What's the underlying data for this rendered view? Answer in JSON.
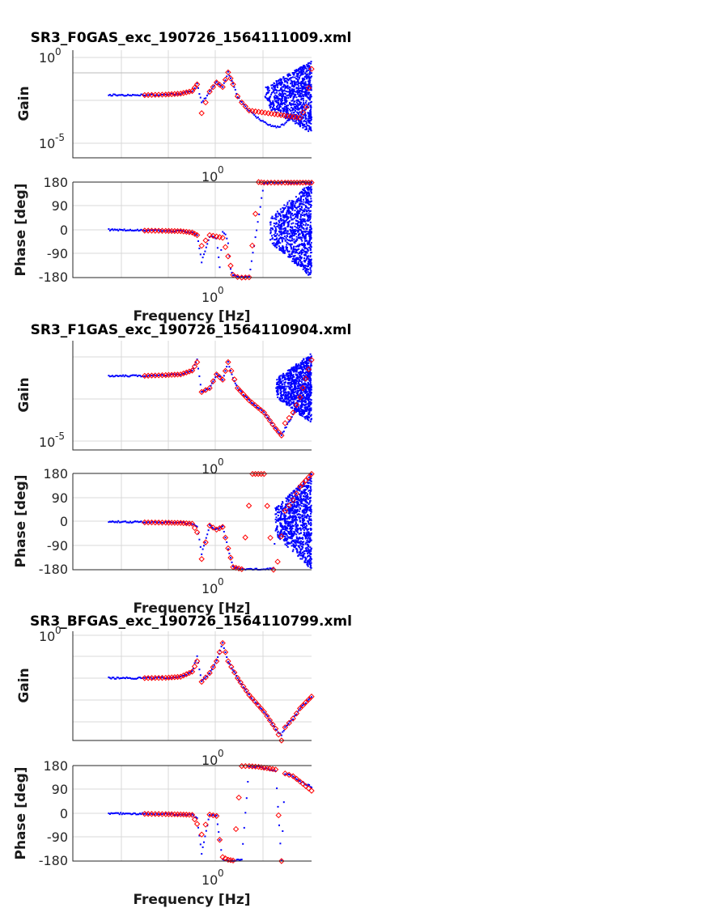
{
  "figure": {
    "blocks": [
      {
        "title": "SR3_F0GAS_exc_190726_1564111009.xml",
        "gain_ylabel": "Gain",
        "phase_ylabel": "Phase [deg]",
        "xlabel": "Frequency [Hz]"
      },
      {
        "title": "SR3_F1GAS_exc_190726_1564110904.xml",
        "gain_ylabel": "Gain",
        "phase_ylabel": "Phase [deg]",
        "xlabel": "Frequency [Hz]"
      },
      {
        "title": "SR3_BFGAS_exc_190726_1564110799.xml",
        "gain_ylabel": "Gain",
        "phase_ylabel": "Phase [deg]",
        "xlabel": "Frequency [Hz]"
      }
    ],
    "phase_ticks": [
      "180",
      "90",
      "0",
      "-90",
      "-180"
    ]
  },
  "chart_data": [
    {
      "type": "scatter",
      "subplot": "gain",
      "title": "SR3_F0GAS_exc_190726_1564111009.xml",
      "ylabel": "Gain",
      "xscale": "log",
      "yscale": "log",
      "xlim": [
        0.05,
        5
      ],
      "ylim": [
        5e-07,
        5
      ],
      "yticks": [
        {
          "base": "10",
          "exp": "0",
          "value": 1
        },
        {
          "base": "10",
          "exp": "-5",
          "value": 1e-05
        }
      ],
      "xticks": [
        {
          "base": "10",
          "exp": "0",
          "value": 1
        }
      ],
      "grid": true,
      "series": [
        {
          "color": "#0000ff",
          "marker": "dot",
          "x": [
            0.1,
            0.2,
            0.3,
            0.4,
            0.5,
            0.55,
            0.6,
            0.65,
            0.7,
            0.8,
            0.9,
            1.0,
            1.1,
            1.2,
            1.3,
            1.5,
            1.7,
            2.0,
            2.3,
            2.6,
            3.0,
            3.5,
            4.0,
            4.5,
            5.0
          ],
          "y": [
            0.006,
            0.006,
            0.0065,
            0.0075,
            0.011,
            0.03,
            0.002,
            0.004,
            0.01,
            0.04,
            0.02,
            0.18,
            0.03,
            0.005,
            0.002,
            0.0006,
            0.00025,
            0.0001,
            6e-05,
            5e-05,
            8e-05,
            0.0003,
            0.002,
            0.01,
            0.1
          ],
          "scatter_band": [
            [
              2.0,
              5.0
            ],
            [
              2e-05,
              1.0
            ]
          ]
        },
        {
          "color": "#ff0000",
          "marker": "diamond",
          "x": [
            0.2,
            0.3,
            0.4,
            0.5,
            0.55,
            0.6,
            0.7,
            0.8,
            0.9,
            1.0,
            1.1,
            1.2,
            1.3,
            1.5,
            4.0,
            4.5,
            5.0
          ],
          "y": [
            0.006,
            0.0065,
            0.0075,
            0.011,
            0.03,
            0.0004,
            0.01,
            0.04,
            0.02,
            0.18,
            0.03,
            0.005,
            0.002,
            0.0006,
            0.0002,
            0.001,
            0.3
          ]
        }
      ]
    },
    {
      "type": "scatter",
      "subplot": "phase",
      "ylabel": "Phase [deg]",
      "xlabel": "Frequency [Hz]",
      "xscale": "log",
      "xlim": [
        0.05,
        5
      ],
      "ylim": [
        -180,
        180
      ],
      "yticks": [
        180,
        90,
        0,
        -90,
        -180
      ],
      "xticks": [
        {
          "base": "10",
          "exp": "0",
          "value": 1
        }
      ],
      "grid": true,
      "series": [
        {
          "color": "#0000ff",
          "marker": "dot",
          "x": [
            0.1,
            0.2,
            0.3,
            0.4,
            0.5,
            0.55,
            0.6,
            0.7,
            0.8,
            0.85,
            0.9,
            0.95,
            1.0,
            1.05,
            1.1,
            1.2,
            1.3,
            1.5,
            2.0,
            2.5,
            3.0,
            4.0,
            5.0
          ],
          "y": [
            0,
            -2,
            -3,
            -5,
            -10,
            -20,
            -120,
            -25,
            -30,
            -140,
            -10,
            -20,
            -50,
            -150,
            -170,
            -178,
            -180,
            -178,
            178,
            178,
            178,
            178,
            178
          ],
          "scatter_band": [
            [
              2.2,
              5.0
            ],
            [
              -180,
              180
            ]
          ]
        },
        {
          "color": "#ff0000",
          "marker": "diamond",
          "x": [
            0.2,
            0.3,
            0.4,
            0.5,
            0.55,
            0.6,
            0.7,
            0.8,
            0.9,
            1.0,
            1.1,
            1.2,
            1.3,
            1.5,
            1.8,
            2.0,
            3.0,
            4.0,
            5.0
          ],
          "y": [
            -3,
            -4,
            -5,
            -10,
            -20,
            -60,
            -20,
            -25,
            -30,
            -100,
            -170,
            -178,
            -180,
            -179,
            180,
            178,
            178,
            178,
            178
          ]
        }
      ]
    },
    {
      "type": "scatter",
      "subplot": "gain",
      "title": "SR3_F1GAS_exc_190726_1564110904.xml",
      "ylabel": "Gain",
      "xscale": "log",
      "yscale": "log",
      "xlim": [
        0.05,
        5
      ],
      "ylim": [
        3e-06,
        5
      ],
      "yticks": [
        {
          "base": "10",
          "exp": "-5",
          "value": 1e-05
        }
      ],
      "xticks": [
        {
          "base": "10",
          "exp": "0",
          "value": 1
        }
      ],
      "grid": true,
      "series": [
        {
          "color": "#0000ff",
          "marker": "dot",
          "x": [
            0.1,
            0.2,
            0.3,
            0.4,
            0.5,
            0.55,
            0.6,
            0.7,
            0.8,
            0.9,
            1.0,
            1.1,
            1.2,
            1.5,
            2.0,
            2.5,
            2.8,
            3.0,
            3.5,
            4.0,
            5.0
          ],
          "y": [
            0.05,
            0.05,
            0.055,
            0.06,
            0.1,
            0.4,
            0.006,
            0.01,
            0.06,
            0.03,
            0.3,
            0.04,
            0.01,
            0.002,
            0.0004,
            5e-05,
            2e-05,
            5e-05,
            0.0003,
            0.003,
            0.2
          ],
          "scatter_band": [
            [
              2.5,
              5.0
            ],
            [
              0.0001,
              1.0
            ]
          ]
        },
        {
          "color": "#ff0000",
          "marker": "diamond",
          "x": [
            0.2,
            0.3,
            0.4,
            0.5,
            0.55,
            0.6,
            0.7,
            0.8,
            0.9,
            1.0,
            1.2,
            1.5,
            2.0,
            2.5,
            2.8,
            3.0,
            3.5,
            4.0,
            5.0
          ],
          "y": [
            0.05,
            0.055,
            0.06,
            0.1,
            0.3,
            0.006,
            0.01,
            0.06,
            0.03,
            0.3,
            0.01,
            0.002,
            0.0004,
            5e-05,
            2e-05,
            0.0001,
            0.0004,
            0.003,
            0.4
          ]
        }
      ]
    },
    {
      "type": "scatter",
      "subplot": "phase",
      "ylabel": "Phase [deg]",
      "xlabel": "Frequency [Hz]",
      "xscale": "log",
      "xlim": [
        0.05,
        5
      ],
      "ylim": [
        -180,
        180
      ],
      "yticks": [
        180,
        90,
        0,
        -90,
        -180
      ],
      "xticks": [
        {
          "base": "10",
          "exp": "0",
          "value": 1
        }
      ],
      "grid": true,
      "series": [
        {
          "color": "#0000ff",
          "marker": "dot",
          "x": [
            0.1,
            0.2,
            0.3,
            0.4,
            0.5,
            0.55,
            0.6,
            0.7,
            0.8,
            0.9,
            1.0,
            1.1,
            1.3,
            1.5,
            2.0,
            2.4,
            2.5,
            3.0,
            3.5,
            4.0,
            5.0
          ],
          "y": [
            0,
            -2,
            -3,
            -5,
            -8,
            -20,
            -120,
            -15,
            -30,
            -20,
            -100,
            -170,
            -178,
            -178,
            -180,
            -175,
            5,
            10,
            20,
            60,
            178
          ],
          "scatter_band": [
            [
              2.4,
              5.0
            ],
            [
              -180,
              180
            ]
          ]
        },
        {
          "color": "#ff0000",
          "marker": "diamond",
          "x": [
            0.2,
            0.3,
            0.4,
            0.5,
            0.55,
            0.6,
            0.7,
            0.8,
            0.9,
            1.0,
            1.1,
            1.3,
            1.6,
            2.0,
            2.4,
            2.6,
            3.0,
            3.5,
            4.0,
            5.0
          ],
          "y": [
            -3,
            -4,
            -5,
            -8,
            -40,
            -140,
            -15,
            -30,
            -20,
            -100,
            -170,
            -178,
            178,
            178,
            -180,
            -150,
            40,
            80,
            130,
            178
          ]
        }
      ]
    },
    {
      "type": "scatter",
      "subplot": "gain",
      "title": "SR3_BFGAS_exc_190726_1564110799.xml",
      "ylabel": "Gain",
      "xscale": "log",
      "yscale": "log",
      "xlim": [
        0.05,
        5
      ],
      "ylim": [
        1e-06,
        3
      ],
      "yticks": [
        {
          "base": "10",
          "exp": "0",
          "value": 1
        }
      ],
      "xticks": [
        {
          "base": "10",
          "exp": "0",
          "value": 1
        }
      ],
      "grid": true,
      "series": [
        {
          "color": "#0000ff",
          "marker": "dot",
          "x": [
            0.1,
            0.2,
            0.3,
            0.4,
            0.5,
            0.55,
            0.6,
            0.7,
            0.8,
            0.9,
            1.0,
            1.2,
            1.5,
            2.0,
            2.5,
            2.8,
            3.0,
            3.5,
            4.0,
            5.0
          ],
          "y": [
            0.005,
            0.005,
            0.0052,
            0.006,
            0.012,
            0.1,
            0.003,
            0.01,
            0.05,
            0.6,
            0.05,
            0.005,
            0.0005,
            5e-05,
            5e-06,
            2e-06,
            6e-06,
            2e-05,
            8e-05,
            0.0004
          ]
        },
        {
          "color": "#ff0000",
          "marker": "diamond",
          "x": [
            0.2,
            0.3,
            0.4,
            0.5,
            0.55,
            0.6,
            0.7,
            0.8,
            0.9,
            1.0,
            1.2,
            1.5,
            2.0,
            2.5,
            2.8,
            3.0,
            3.5,
            4.0,
            5.0
          ],
          "y": [
            0.005,
            0.0052,
            0.006,
            0.012,
            0.05,
            0.003,
            0.01,
            0.05,
            0.6,
            0.05,
            0.005,
            0.0005,
            5e-05,
            5e-06,
            1e-06,
            6e-06,
            2e-05,
            8e-05,
            0.0004
          ]
        }
      ]
    },
    {
      "type": "scatter",
      "subplot": "phase",
      "ylabel": "Phase [deg]",
      "xlabel": "Frequency [Hz]",
      "xscale": "log",
      "xlim": [
        0.05,
        5
      ],
      "ylim": [
        -180,
        180
      ],
      "yticks": [
        180,
        90,
        0,
        -90,
        -180
      ],
      "xticks": [
        {
          "base": "10",
          "exp": "0",
          "value": 1
        }
      ],
      "grid": true,
      "series": [
        {
          "color": "#0000ff",
          "marker": "dot",
          "x": [
            0.1,
            0.2,
            0.3,
            0.4,
            0.5,
            0.55,
            0.6,
            0.7,
            0.8,
            0.85,
            0.9,
            1.0,
            1.1,
            1.3,
            1.5,
            1.8,
            2.0,
            2.5,
            2.8,
            3.0,
            3.5,
            4.0,
            5.0
          ],
          "y": [
            0,
            -2,
            -3,
            -4,
            -6,
            -20,
            -150,
            -5,
            -10,
            -100,
            -175,
            -178,
            -178,
            -175,
            178,
            175,
            170,
            160,
            -180,
            150,
            140,
            120,
            100
          ]
        },
        {
          "color": "#ff0000",
          "marker": "diamond",
          "x": [
            0.2,
            0.3,
            0.4,
            0.5,
            0.55,
            0.6,
            0.7,
            0.8,
            0.85,
            0.9,
            1.0,
            1.1,
            1.3,
            1.5,
            1.8,
            2.0,
            2.5,
            2.8,
            3.0,
            3.5,
            4.0,
            5.0
          ],
          "y": [
            -2,
            -3,
            -4,
            -6,
            -40,
            -80,
            -5,
            -10,
            -100,
            -165,
            -175,
            -178,
            178,
            178,
            175,
            172,
            165,
            -180,
            150,
            140,
            120,
            85
          ]
        }
      ]
    }
  ]
}
